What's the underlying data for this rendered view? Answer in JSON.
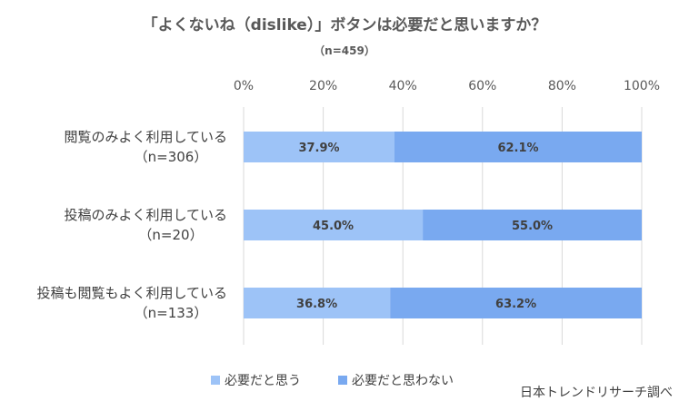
{
  "chart_data": {
    "type": "bar",
    "orientation": "horizontal",
    "stacked": true,
    "title": "「よくないね（dislike）」ボタンは必要だと思いますか？",
    "subtitle": "（n=459）",
    "categories": [
      {
        "label": "閲覧のみよく利用している",
        "n": "（n=306）"
      },
      {
        "label": "投稿のみよく利用している",
        "n": "（n=20）"
      },
      {
        "label": "投稿も閲覧もよく利用している",
        "n": "（n=133）"
      }
    ],
    "series": [
      {
        "name": "必要だと思う",
        "color": "#9dc3f7",
        "values": [
          37.9,
          45.0,
          36.8
        ],
        "labels": [
          "37.9%",
          "45.0%",
          "36.8%"
        ]
      },
      {
        "name": "必要だと思わない",
        "color": "#79a9f0",
        "values": [
          62.1,
          55.0,
          63.2
        ],
        "labels": [
          "62.1%",
          "55.0%",
          "63.2%"
        ]
      }
    ],
    "xlim": [
      0,
      100
    ],
    "x_ticks": [
      "0%",
      "20%",
      "40%",
      "60%",
      "80%",
      "100%"
    ],
    "grid": true,
    "legend_position": "bottom"
  },
  "credit": "日本トレンドリサーチ調べ"
}
